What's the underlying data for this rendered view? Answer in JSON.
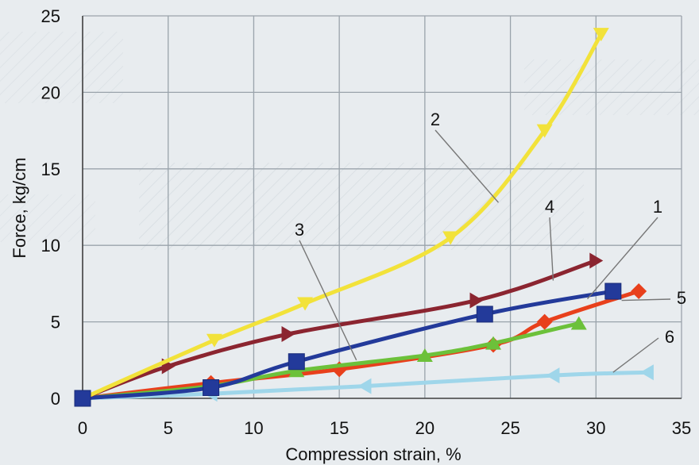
{
  "chart_data": {
    "type": "line",
    "title": "",
    "xlabel": "Compression strain, %",
    "ylabel": "Force, kg/cm",
    "xlim": [
      0,
      35
    ],
    "ylim": [
      0,
      25
    ],
    "x_ticks": [
      "0",
      "5",
      "10",
      "15",
      "20",
      "25",
      "30",
      "35"
    ],
    "y_ticks": [
      "0",
      "5",
      "10",
      "15",
      "20",
      "25"
    ],
    "grid": true,
    "legend": "none (curves labelled by numbers with leader lines)",
    "series": [
      {
        "label": "1",
        "color": "#233a9a",
        "marker": "square",
        "x": [
          0,
          7.5,
          12.5,
          23.5,
          31
        ],
        "y": [
          0,
          0.7,
          2.4,
          5.5,
          7.0
        ]
      },
      {
        "label": "2",
        "color": "#f2e23a",
        "marker": "triangle-down",
        "x": [
          0,
          7.7,
          13,
          21.5,
          27,
          30.3
        ],
        "y": [
          0,
          3.8,
          6.2,
          10.5,
          17.5,
          23.8
        ]
      },
      {
        "label": "3",
        "color": "#e8401c",
        "marker": "diamond",
        "x": [
          0,
          7.5,
          15,
          24,
          27,
          32.5
        ],
        "y": [
          0,
          1.0,
          1.9,
          3.5,
          5.0,
          7.0
        ]
      },
      {
        "label": "4",
        "color": "#8b2530",
        "marker": "triangle-right",
        "x": [
          0,
          5,
          12,
          23,
          30
        ],
        "y": [
          0,
          2.1,
          4.2,
          6.4,
          9.0
        ]
      },
      {
        "label": "5",
        "color": "#6cc13a",
        "marker": "triangle-up",
        "x": [
          0,
          7.5,
          12.5,
          20,
          24,
          29
        ],
        "y": [
          0,
          0.8,
          1.8,
          2.8,
          3.6,
          4.9
        ]
      },
      {
        "label": "6",
        "color": "#9fd6ea",
        "marker": "triangle-left",
        "x": [
          0,
          7.5,
          16.5,
          27.5,
          33
        ],
        "y": [
          0,
          0.3,
          0.8,
          1.5,
          1.7
        ]
      }
    ],
    "annotations": [
      {
        "text": "2",
        "series": "2",
        "point": [
          24.3,
          12.8
        ]
      },
      {
        "text": "4",
        "series": "4",
        "point": [
          27.5,
          7.7
        ]
      },
      {
        "text": "1",
        "series": "1",
        "point": [
          29.5,
          6.5
        ]
      },
      {
        "text": "3",
        "series": "3",
        "point": [
          16,
          2.5
        ]
      },
      {
        "text": "5",
        "series": "5",
        "point": [
          31.5,
          6.4
        ]
      },
      {
        "text": "6",
        "series": "6",
        "point": [
          31,
          1.7
        ]
      }
    ]
  }
}
